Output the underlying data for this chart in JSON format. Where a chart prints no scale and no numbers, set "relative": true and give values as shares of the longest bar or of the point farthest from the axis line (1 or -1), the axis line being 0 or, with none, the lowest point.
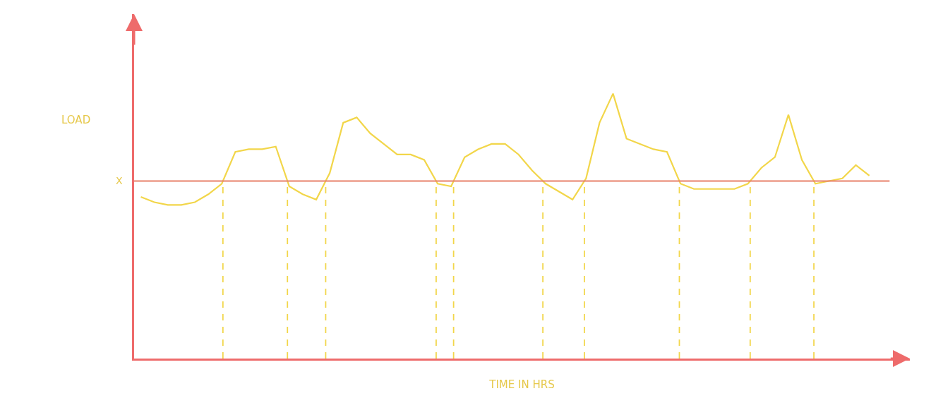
{
  "chart_data": {
    "type": "line",
    "relative": true,
    "xlabel": "TIME IN HRS",
    "ylabel": "LOAD",
    "categories": [
      null,
      null,
      null,
      null,
      null,
      null,
      null,
      null,
      null,
      null,
      null,
      null,
      null,
      null,
      null,
      null,
      null,
      null,
      null,
      null,
      null,
      null,
      null,
      null,
      null,
      null,
      null,
      null,
      null,
      null,
      null,
      null,
      null,
      null,
      null,
      null,
      null,
      null,
      null,
      null,
      null,
      null,
      null,
      null,
      null,
      null,
      null,
      null,
      null,
      null,
      null,
      null,
      null,
      null,
      null
    ],
    "series": [
      {
        "color": "#f2d64a",
        "values": [
          0.61,
          0.59,
          0.58,
          0.58,
          0.59,
          0.62,
          0.66,
          0.78,
          0.79,
          0.79,
          0.8,
          0.65,
          0.62,
          0.6,
          0.7,
          0.89,
          0.91,
          0.85,
          0.81,
          0.77,
          0.77,
          0.75,
          0.66,
          0.65,
          0.76,
          0.79,
          0.81,
          0.81,
          0.77,
          0.71,
          0.66,
          0.63,
          0.6,
          0.68,
          0.89,
          1.0,
          0.83,
          0.81,
          0.79,
          0.78,
          0.66,
          0.64,
          0.64,
          0.64,
          0.64,
          0.66,
          0.72,
          0.76,
          0.92,
          0.75,
          0.66,
          0.67,
          0.68,
          0.73,
          0.69
        ]
      }
    ],
    "ref_lines": [
      {
        "axis": "y",
        "value": 0.67,
        "label": "X",
        "color": "#e8806a",
        "line_style": "solid"
      }
    ]
  }
}
